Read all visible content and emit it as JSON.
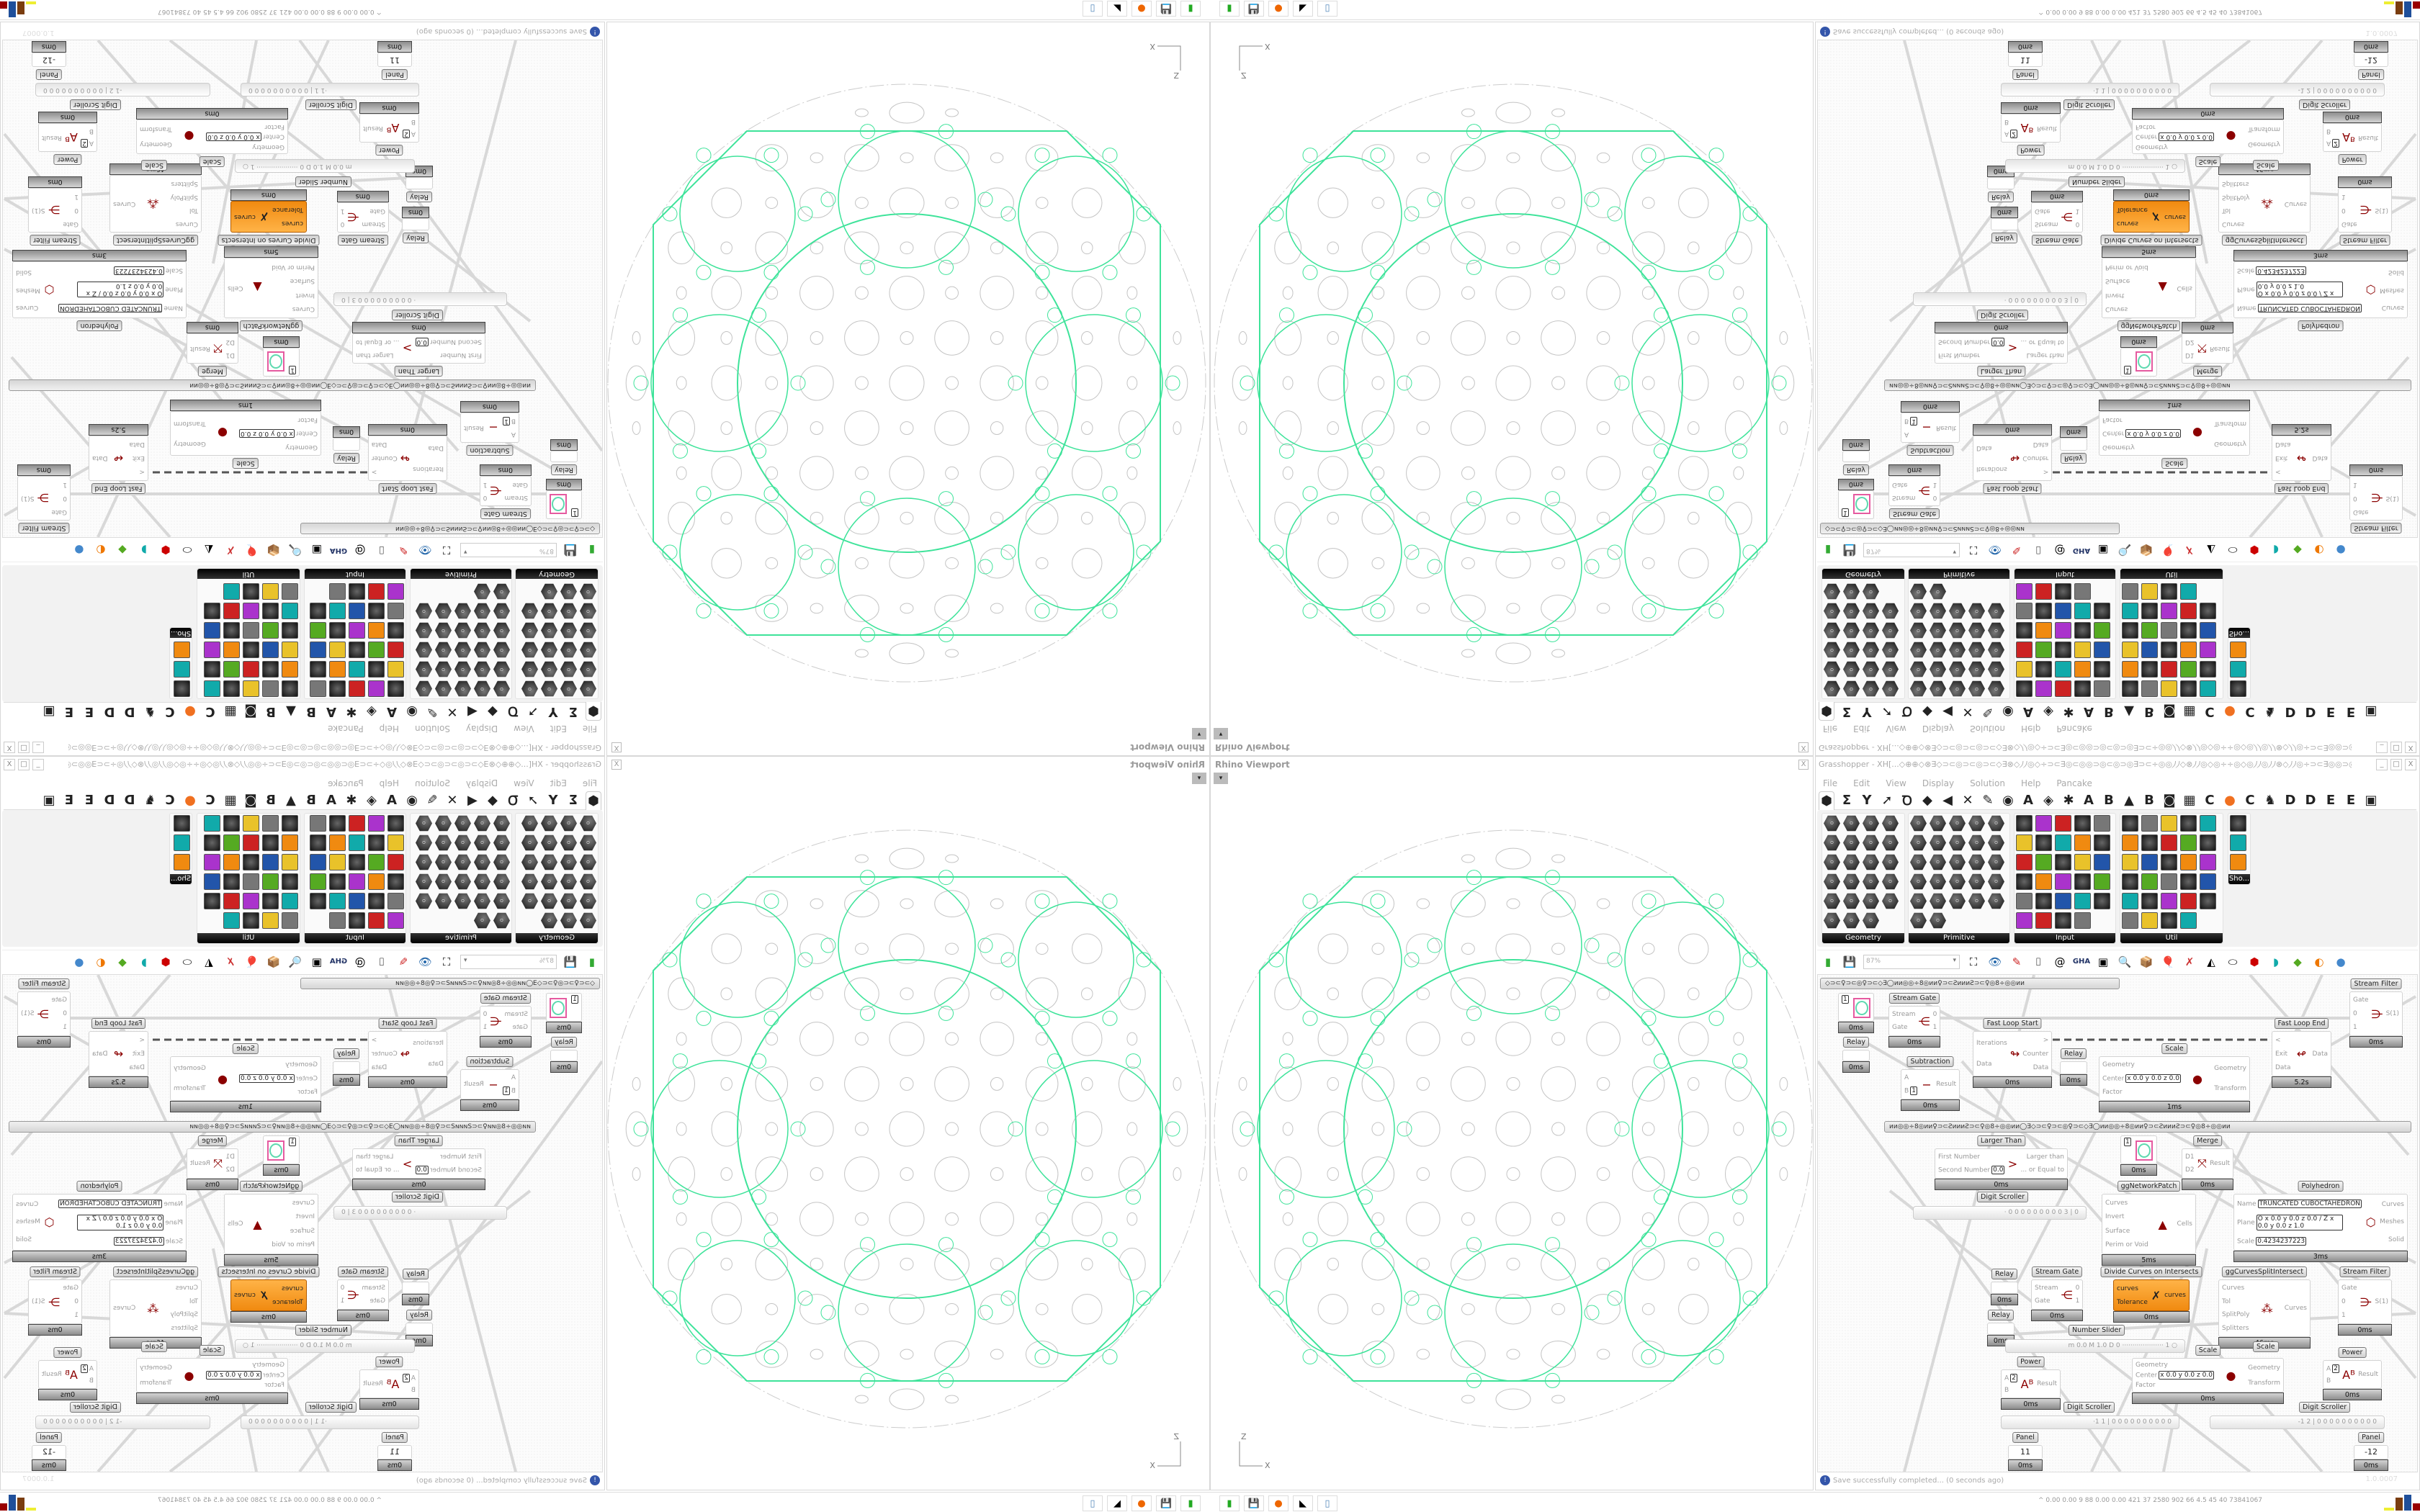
{
  "viewport": {
    "title": "Rhino Viewport",
    "close": "X",
    "dropdown": "▾",
    "axis_z": "Z",
    "axis_x": "X",
    "wire_color": "#3ee39a"
  },
  "grasshopper": {
    "title": "Grasshopper - XH[...◇⊕⊕◇⊗∃◇⊃⊂◎⊃⊂◎⊃⊂◇∃⊗◇⵰⵰◎◇÷⊃⊂∃◎⊂◎◎⊃◎⊂◎⊃◎∃⊃⊂÷◎◎⵰⵰◇⊗⵰⵰◎◇◎÷÷◎◇◎⵰⵰◎⵰⵰⊗◇⵰⵰◎÷⊃⊂∃◎◎⊃◎...",
    "window_buttons": [
      "_",
      "□",
      "X"
    ],
    "menu": [
      "File",
      "Edit",
      "View",
      "Display",
      "Solution",
      "Help",
      "Pancake"
    ],
    "tabs": [
      "⬢",
      "Σ",
      "Y",
      "➚",
      "Ꝺ",
      "◆",
      "◀",
      "✕",
      "✎",
      "◉",
      "A",
      "◈",
      "✱",
      "A",
      "B",
      "▲",
      "B",
      "◙",
      "▦",
      "C",
      "●",
      "C",
      "♞",
      "D",
      "D",
      "E",
      "E",
      "▣"
    ],
    "panels": [
      {
        "name": "Geometry"
      },
      {
        "name": "Primitive"
      },
      {
        "name": "Input"
      },
      {
        "name": "Util"
      },
      {
        "name": "Sho..."
      }
    ],
    "zoom": "87%",
    "status": "Save successfully completed... (0 seconds ago)",
    "version": "1.0.0007",
    "accent": "#f39019"
  },
  "canvas": {
    "groups": [
      "◇⊃⊂♀⊃⊂◎♀⊃⊂◇∃◯ᴎᴎ◎◎÷8◎ᴎᴎ♀⊃⊂ƧᴎᴎᴎƧ⊃⊂♀◎8÷◎◎ᴎᴎ",
      "ᴎᴎ◎◎÷8◎ᴎᴎ♀⊃⊂ƧᴎᴎᴎƧ⊃⊂♀◎8÷◎◎ᴎᴎ◯∃◇⊃⊂♀⊃⊂◎♀⊃⊂◇∃◯ᴎᴎ◎◎÷8◎ᴎᴎ♀⊃⊂ƧᴎᴎᴎƧ⊃⊂♀◎8÷◎◎ᴎᴎ"
    ],
    "components": {
      "swatch1": {
        "inputs": [
          "",
          ""
        ],
        "outputs": [
          ""
        ],
        "value": "1",
        "time": "0ms"
      },
      "relay1": {
        "label": "Relay",
        "inputs": [],
        "outputs": [],
        "time": "0ms"
      },
      "sgate1": {
        "label": "Stream Gate",
        "inputs": [
          "Stream",
          "Gate"
        ],
        "outputs": [
          "0",
          "1"
        ],
        "time": "0ms",
        "icon": "⋲"
      },
      "sub": {
        "label": "Subtraction",
        "inputs": [
          "A",
          {
            "name": "B",
            "value": "1"
          }
        ],
        "outputs": [
          "Result"
        ],
        "time": "0ms",
        "icon": "−"
      },
      "fls": {
        "label": "Fast Loop Start",
        "inputs": [
          "Iterations",
          "Data"
        ],
        "outputs": [
          ">",
          "Counter",
          "Data"
        ],
        "time": "0ms",
        "icon": "↬"
      },
      "relay2": {
        "label": "Relay",
        "inputs": [],
        "outputs": [],
        "time": "0ms"
      },
      "scale1": {
        "label": "Scale",
        "inputs": [
          "Geometry",
          {
            "name": "Center",
            "value": "x 0.0  y 0.0  z 0.0"
          },
          "Factor"
        ],
        "outputs": [
          "Geometry",
          "Transform"
        ],
        "time": "1ms",
        "icon": "●"
      },
      "fle": {
        "label": "Fast Loop End",
        "inputs": [
          "<",
          "Exit",
          "Data"
        ],
        "outputs": [
          "Data"
        ],
        "time": "5.2s",
        "icon": "↫"
      },
      "sfilter1": {
        "label": "Stream Filter",
        "inputs": [
          "Gate",
          "0",
          "1"
        ],
        "outputs": [
          "S(1)"
        ],
        "time": "0ms",
        "icon": "⋺"
      },
      "larger": {
        "label": "Larger Than",
        "inputs": [
          "First Number",
          {
            "name": "Second Number",
            "value": "0.0"
          }
        ],
        "outputs": [
          "Larger than",
          "... or Equal to"
        ],
        "time": "0ms",
        "icon": ">"
      },
      "swatch2": {
        "inputs": [
          "",
          ""
        ],
        "outputs": [
          ""
        ],
        "value": "1",
        "time": "0ms"
      },
      "merge": {
        "label": "Merge",
        "inputs": [
          "D1",
          "D2"
        ],
        "outputs": [
          "Result"
        ],
        "time": "0ms",
        "icon": "⤧"
      },
      "netpatch": {
        "label": "ggNetworkPatch",
        "inputs": [
          "Curves",
          "Invert",
          "Surface",
          "Perim or Void"
        ],
        "outputs": [
          "Cells"
        ],
        "time": "5ms",
        "icon": "▲"
      },
      "poly": {
        "label": "Polyhedron",
        "inputs": [
          {
            "name": "Name",
            "value": "TRUNCATED CUBOCTAHEDRON"
          },
          {
            "name": "Plane",
            "value": "O x 0.0 y 0.0 z 0.0 / Z x 0.0 y 0.0 z 1.0"
          },
          {
            "name": "Scale",
            "value": "0.4234237223"
          }
        ],
        "outputs": [
          "Curves",
          "Meshes",
          "Solid"
        ],
        "time": "3ms",
        "icon": "⬡"
      },
      "relay3": {
        "label": "Relay",
        "inputs": [],
        "outputs": [],
        "time": "0ms"
      },
      "sgate2": {
        "label": "Stream Gate",
        "inputs": [
          "Stream",
          "Gate"
        ],
        "outputs": [
          "0",
          "1"
        ],
        "time": "0ms",
        "icon": "⋲"
      },
      "dcoi": {
        "label": "Divide Curves on Intersects",
        "inputs": [
          "curves",
          "Tolerance"
        ],
        "outputs": [
          "curves"
        ],
        "time": "0ms",
        "icon": "✗"
      },
      "ggcsi": {
        "label": "ggCurvesSplitIntersect",
        "inputs": [
          "Curves",
          "Tol",
          "SplitPoly",
          "Splitters"
        ],
        "outputs": [
          "Curves"
        ],
        "time": "46ms",
        "icon": "⁂"
      },
      "sfilter2": {
        "label": "Stream Filter",
        "inputs": [
          "Gate",
          "0",
          "1"
        ],
        "outputs": [
          "S(1)"
        ],
        "time": "0ms",
        "icon": "⋺"
      },
      "relay4": {
        "label": "Relay",
        "inputs": [],
        "outputs": [],
        "time": "0ms"
      },
      "power1": {
        "label": "Power",
        "inputs": [
          {
            "name": "A",
            "value": "2"
          },
          "B"
        ],
        "outputs": [
          "Result"
        ],
        "time": "0ms",
        "icon": "Aᴮ"
      },
      "scale2": {
        "label": "Scale",
        "inputs": [
          "Geometry",
          {
            "name": "Center",
            "value": "x 0.0  y 0.0  z 0.0"
          },
          "Factor"
        ],
        "outputs": [
          "Geometry",
          "Transform"
        ],
        "time": "0ms",
        "icon": "●"
      },
      "power2": {
        "label": "Power",
        "inputs": [
          {
            "name": "A",
            "value": "2"
          },
          "B"
        ],
        "outputs": [
          "Result"
        ],
        "time": "0ms",
        "icon": "Aᴮ"
      },
      "panel11": {
        "label": "Panel",
        "inputs": [],
        "outputs": [],
        "value": "11",
        "time": "0ms"
      },
      "panel12": {
        "label": "Panel",
        "inputs": [],
        "outputs": [],
        "value": "-12",
        "time": "0ms"
      }
    },
    "loose_labels": {
      "digit1": "Digit Scroller",
      "digit2": "Digit Scroller",
      "digit3": "Digit Scroller",
      "slider": "Number Slider",
      "scale_label": "Scale"
    },
    "sliders": {
      "digit1": "· 0 0 0 0 0 0 0 0 0 3 | 0",
      "number": "m 0.0  M 1.0  D 0   ····················  1 ○",
      "digit2": "·1 1 | 0 0 0 0 0 0 0 0 0 0",
      "digit3": "-1 2 | 0 0 0 0 0 0 0 0 0 0"
    }
  },
  "taskbar": {
    "apps": [
      "launcher-icon",
      "save64-icon",
      "firefox-icon",
      "inkscape-icon",
      "calculator-icon"
    ],
    "tray": "^  0.00 0.00  9   88  0.00 0.00  421  37  2580 902  66  4.5  45  40  73841067"
  }
}
